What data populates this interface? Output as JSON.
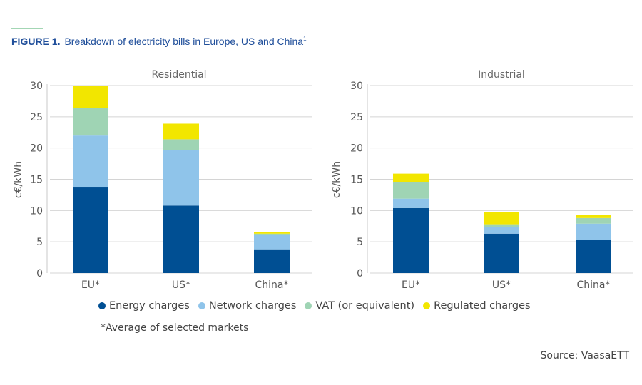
{
  "figure": {
    "label": "FIGURE 1.",
    "title": "Breakdown of electricity bills in Europe, US and China",
    "title_sup": "1"
  },
  "colors": {
    "energy": "#004f93",
    "network": "#8fc4ea",
    "vat": "#9fd4b4",
    "regulated": "#f2e600",
    "grid": "#d4d4d4",
    "title": "#1f4e9a"
  },
  "legend": [
    {
      "label": "Energy charges",
      "color": "#004f93"
    },
    {
      "label": "Network charges",
      "color": "#8fc4ea"
    },
    {
      "label": "VAT (or equivalent)",
      "color": "#9fd4b4"
    },
    {
      "label": "Regulated charges",
      "color": "#f2e600"
    }
  ],
  "footnote": "*Average of selected markets",
  "source": "Source: VaasaETT",
  "chart_data": [
    {
      "type": "bar",
      "stacked": true,
      "title": "Residential",
      "ylabel": "c€/kWh",
      "xlabel": "",
      "ylim": [
        0,
        30
      ],
      "yticks": [
        0,
        5,
        10,
        15,
        20,
        25,
        30
      ],
      "grid": true,
      "categories": [
        "EU*",
        "US*",
        "China*"
      ],
      "series": [
        {
          "name": "Energy charges",
          "key": "energy",
          "values": [
            13.8,
            10.8,
            3.8
          ]
        },
        {
          "name": "Network charges",
          "key": "network",
          "values": [
            8.2,
            8.9,
            2.3
          ]
        },
        {
          "name": "VAT (or equivalent)",
          "key": "vat",
          "values": [
            4.4,
            1.7,
            0.2
          ]
        },
        {
          "name": "Regulated charges",
          "key": "regulated",
          "values": [
            3.6,
            2.5,
            0.3
          ]
        }
      ]
    },
    {
      "type": "bar",
      "stacked": true,
      "title": "Industrial",
      "ylabel": "c€/kWh",
      "xlabel": "",
      "ylim": [
        0,
        30
      ],
      "yticks": [
        0,
        5,
        10,
        15,
        20,
        25,
        30
      ],
      "grid": true,
      "categories": [
        "EU*",
        "US*",
        "China*"
      ],
      "series": [
        {
          "name": "Energy charges",
          "key": "energy",
          "values": [
            10.4,
            6.3,
            5.3
          ]
        },
        {
          "name": "Network charges",
          "key": "network",
          "values": [
            1.5,
            1.0,
            2.6
          ]
        },
        {
          "name": "VAT (or equivalent)",
          "key": "vat",
          "values": [
            2.7,
            0.5,
            0.9
          ]
        },
        {
          "name": "Regulated charges",
          "key": "regulated",
          "values": [
            1.3,
            2.0,
            0.5
          ]
        }
      ]
    }
  ]
}
